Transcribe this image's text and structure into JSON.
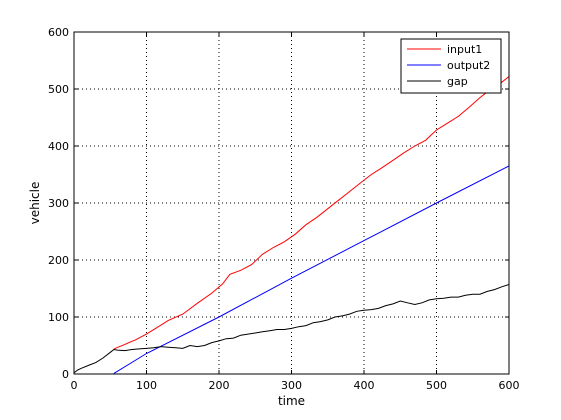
{
  "chart_data": {
    "type": "line",
    "title": "",
    "xlabel": "time",
    "ylabel": "vehicle",
    "xlim": [
      0,
      600
    ],
    "ylim": [
      0,
      600
    ],
    "xticks": [
      0,
      100,
      200,
      300,
      400,
      500,
      600
    ],
    "yticks": [
      0,
      100,
      200,
      300,
      400,
      500,
      600
    ],
    "grid": "dotted",
    "legend_position": "top-right",
    "series": [
      {
        "name": "input1",
        "color": "#ff0000",
        "x": [
          55,
          70,
          85,
          100,
          115,
          130,
          150,
          170,
          190,
          205,
          215,
          230,
          245,
          260,
          275,
          290,
          305,
          320,
          335,
          350,
          365,
          380,
          395,
          410,
          425,
          440,
          455,
          470,
          485,
          500,
          515,
          530,
          545,
          560,
          575,
          590,
          600
        ],
        "y": [
          44,
          52,
          60,
          70,
          82,
          94,
          105,
          124,
          142,
          158,
          175,
          182,
          192,
          210,
          222,
          232,
          245,
          262,
          275,
          290,
          305,
          320,
          335,
          350,
          362,
          375,
          388,
          400,
          410,
          428,
          440,
          452,
          468,
          485,
          500,
          512,
          522
        ]
      },
      {
        "name": "output2",
        "color": "#0000ff",
        "x": [
          55,
          100,
          200,
          300,
          400,
          500,
          600
        ],
        "y": [
          1,
          36,
          100,
          168,
          234,
          300,
          365
        ]
      },
      {
        "name": "gap",
        "color": "#000000",
        "x": [
          0,
          5,
          10,
          20,
          30,
          40,
          50,
          55,
          60,
          70,
          80,
          90,
          100,
          110,
          120,
          130,
          140,
          150,
          160,
          170,
          180,
          190,
          200,
          210,
          220,
          230,
          240,
          250,
          260,
          270,
          280,
          290,
          300,
          310,
          320,
          330,
          340,
          350,
          360,
          370,
          380,
          390,
          400,
          410,
          420,
          430,
          440,
          450,
          460,
          470,
          480,
          490,
          500,
          510,
          520,
          530,
          540,
          550,
          560,
          570,
          580,
          590,
          600
        ],
        "y": [
          2,
          7,
          10,
          15,
          20,
          28,
          38,
          43,
          42,
          41,
          43,
          44,
          45,
          46,
          48,
          47,
          46,
          45,
          50,
          48,
          50,
          55,
          58,
          62,
          63,
          68,
          70,
          72,
          74,
          76,
          78,
          78,
          80,
          83,
          85,
          90,
          92,
          95,
          100,
          102,
          105,
          110,
          112,
          113,
          115,
          120,
          123,
          128,
          125,
          122,
          125,
          130,
          132,
          133,
          135,
          135,
          138,
          140,
          140,
          145,
          148,
          153,
          157
        ]
      }
    ]
  }
}
